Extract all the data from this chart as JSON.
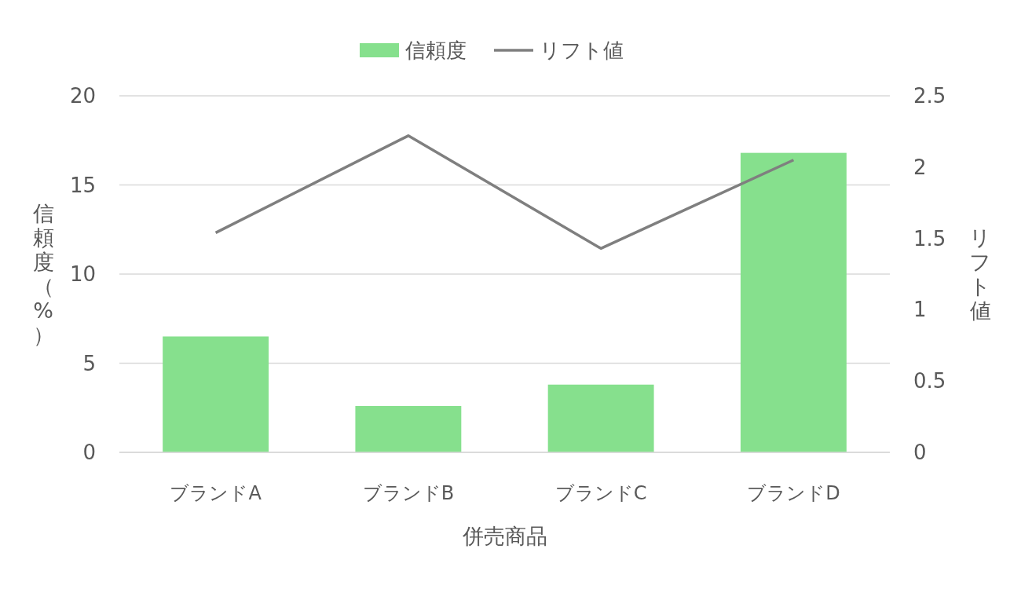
{
  "chart_data": {
    "type": "bar",
    "xlabel": "併売商品",
    "ylabel": "信頼度（%）",
    "y2label": "リフト値",
    "categories": [
      "ブランドA",
      "ブランドB",
      "ブランドC",
      "ブランドD"
    ],
    "series": [
      {
        "name": "信頼度",
        "color": "#86e08d",
        "values": [
          6.5,
          2.6,
          3.8,
          16.8
        ]
      },
      {
        "name": "リフト値",
        "type": "line",
        "axis": "y2",
        "color": "#7f7f7f",
        "values": [
          1.54,
          2.22,
          1.43,
          2.05
        ]
      }
    ],
    "ylim": [
      0,
      20
    ],
    "yticks": [
      0,
      5,
      10,
      15,
      20
    ],
    "y2lim": [
      0,
      2.5
    ],
    "y2ticks": [
      0,
      0.5,
      1,
      1.5,
      2,
      2.5
    ],
    "grid": "y",
    "legend": "top"
  }
}
